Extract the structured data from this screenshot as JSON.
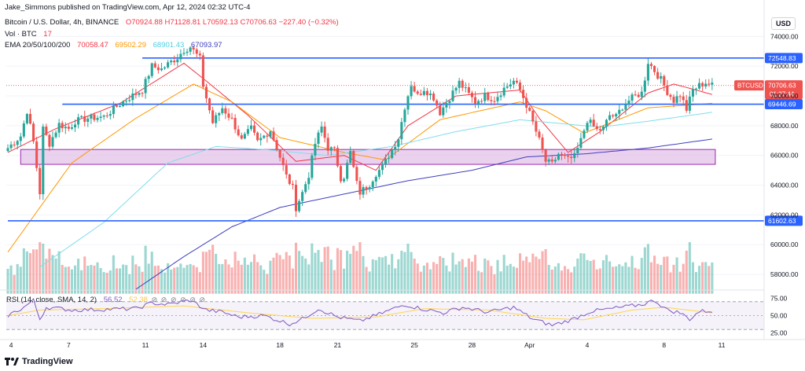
{
  "header": {
    "publisher": "Jake_Simmons published on TradingView.com, Apr 12, 2024 02:32 UTC-4",
    "symbol": "Bitcoin / U.S. Dollar, 4h, BINANCE",
    "open": "O70924.88",
    "high": "H71128.81",
    "low": "L70592.13",
    "close": "C70706.63",
    "change": "−227.40 (−0.32%)",
    "vol_label": "Vol · BTC",
    "vol_value": "17",
    "ema_label": "EMA 20/50/100/200",
    "ema20": "70058.47",
    "ema50": "69502.29",
    "ema100": "68901.43",
    "ema200": "67093.97",
    "currency": "USD"
  },
  "rsi_header": {
    "label": "RSI (14, close, SMA, 14, 2)",
    "value": "56.52",
    "sma": "52.38",
    "circles": [
      "⊘",
      "⊘",
      "⊘",
      "⊘",
      "⊘",
      "⊘"
    ]
  },
  "footer": {
    "brand": "TradingView"
  },
  "colors": {
    "up": "#26a69a",
    "down": "#ef5350",
    "ema20": "#f23645",
    "ema50": "#ff9800",
    "ema100": "#80deea",
    "ema200": "#3f3fbf",
    "level": "#2962ff",
    "zone_fill": "#e1bee7",
    "zone_border": "#9c27b0",
    "rsi_line": "#7e57c2",
    "rsi_sma": "#ffd54f"
  },
  "chart_data": {
    "type": "candlestick",
    "title": "Bitcoin / U.S. Dollar, 4h, BINANCE",
    "ylabel": "USD",
    "ylim": [
      57000,
      75500
    ],
    "y_ticks": [
      58000,
      60000,
      62000,
      64000,
      66000,
      68000,
      70000,
      72000,
      74000
    ],
    "y_tick_labels": [
      "58000.00",
      "60000.00",
      "62000.00",
      "64000.00",
      "66000.00",
      "68000.00",
      "70000.00",
      "72000.00",
      "74000.00"
    ],
    "x_ticks": [
      "4",
      "7",
      "11",
      "14",
      "18",
      "21",
      "25",
      "28",
      "Apr",
      "4",
      "8",
      "11"
    ],
    "x_tick_bar_index": [
      1,
      19,
      43,
      61,
      85,
      103,
      127,
      145,
      163,
      181,
      205,
      223
    ],
    "horizontal_levels": [
      {
        "value": 72548.83,
        "label": "72548.83",
        "start_bar": 42
      },
      {
        "value": 69446.69,
        "label": "69446.69",
        "start_bar": 17
      },
      {
        "value": 61602.63,
        "label": "61602.63",
        "start_bar": 0
      }
    ],
    "zone": {
      "low": 65400,
      "high": 66400,
      "start_bar": 4,
      "end_bar": 221
    },
    "price_tag": {
      "symbol": "BTCUSD",
      "value": "70706.63",
      "countdown": "01:27:44"
    },
    "anchors": [
      [
        0,
        66500
      ],
      [
        4,
        67300
      ],
      [
        6,
        69000
      ],
      [
        8,
        66900
      ],
      [
        10,
        63500
      ],
      [
        11,
        67800
      ],
      [
        13,
        66800
      ],
      [
        16,
        68100
      ],
      [
        19,
        67800
      ],
      [
        21,
        68300
      ],
      [
        25,
        68500
      ],
      [
        30,
        68600
      ],
      [
        34,
        69300
      ],
      [
        38,
        69900
      ],
      [
        42,
        70400
      ],
      [
        45,
        72000
      ],
      [
        48,
        71800
      ],
      [
        51,
        72300
      ],
      [
        53,
        72600
      ],
      [
        55,
        73100
      ],
      [
        57,
        73300
      ],
      [
        60,
        72500
      ],
      [
        61,
        70700
      ],
      [
        64,
        68200
      ],
      [
        67,
        69200
      ],
      [
        70,
        68400
      ],
      [
        73,
        67000
      ],
      [
        76,
        67800
      ],
      [
        78,
        66900
      ],
      [
        82,
        67700
      ],
      [
        85,
        65900
      ],
      [
        87,
        64600
      ],
      [
        89,
        63800
      ],
      [
        90,
        62500
      ],
      [
        92,
        63500
      ],
      [
        94,
        64700
      ],
      [
        96,
        66800
      ],
      [
        98,
        67900
      ],
      [
        100,
        66500
      ],
      [
        102,
        66300
      ],
      [
        104,
        64500
      ],
      [
        105,
        64600
      ],
      [
        107,
        66200
      ],
      [
        109,
        64100
      ],
      [
        110,
        63500
      ],
      [
        113,
        64100
      ],
      [
        115,
        64800
      ],
      [
        117,
        65200
      ],
      [
        120,
        66400
      ],
      [
        122,
        67200
      ],
      [
        124,
        69300
      ],
      [
        126,
        70800
      ],
      [
        128,
        70000
      ],
      [
        130,
        70500
      ],
      [
        133,
        69900
      ],
      [
        135,
        68900
      ],
      [
        138,
        69900
      ],
      [
        141,
        70900
      ],
      [
        144,
        70100
      ],
      [
        146,
        69600
      ],
      [
        149,
        70000
      ],
      [
        152,
        69800
      ],
      [
        155,
        70500
      ],
      [
        158,
        71000
      ],
      [
        160,
        70400
      ],
      [
        162,
        69400
      ],
      [
        164,
        68200
      ],
      [
        166,
        67000
      ],
      [
        168,
        65600
      ],
      [
        170,
        65400
      ],
      [
        172,
        66100
      ],
      [
        175,
        65700
      ],
      [
        177,
        65900
      ],
      [
        179,
        67000
      ],
      [
        181,
        68400
      ],
      [
        184,
        67700
      ],
      [
        186,
        67800
      ],
      [
        188,
        68700
      ],
      [
        190,
        68600
      ],
      [
        192,
        69300
      ],
      [
        194,
        69700
      ],
      [
        196,
        70000
      ],
      [
        198,
        70200
      ],
      [
        199,
        71200
      ],
      [
        200,
        72300
      ],
      [
        201,
        72000
      ],
      [
        202,
        71700
      ],
      [
        204,
        71100
      ],
      [
        206,
        70300
      ],
      [
        208,
        69700
      ],
      [
        210,
        70100
      ],
      [
        212,
        69100
      ],
      [
        214,
        70400
      ],
      [
        216,
        70700
      ],
      [
        218,
        70900
      ],
      [
        220,
        70700
      ]
    ],
    "ema_series": [
      {
        "name": "EMA 20",
        "color": "#f23645",
        "points": [
          [
            0,
            66200
          ],
          [
            15,
            67800
          ],
          [
            35,
            69500
          ],
          [
            55,
            72200
          ],
          [
            62,
            71000
          ],
          [
            75,
            68700
          ],
          [
            90,
            65600
          ],
          [
            105,
            66000
          ],
          [
            115,
            65000
          ],
          [
            125,
            68000
          ],
          [
            140,
            70000
          ],
          [
            160,
            70400
          ],
          [
            166,
            68500
          ],
          [
            175,
            66200
          ],
          [
            185,
            67600
          ],
          [
            200,
            70200
          ],
          [
            208,
            70800
          ],
          [
            220,
            70100
          ]
        ]
      },
      {
        "name": "EMA 50",
        "color": "#ff9800",
        "points": [
          [
            0,
            59500
          ],
          [
            20,
            65500
          ],
          [
            40,
            68500
          ],
          [
            58,
            70800
          ],
          [
            70,
            69600
          ],
          [
            85,
            67200
          ],
          [
            105,
            66200
          ],
          [
            118,
            65700
          ],
          [
            135,
            68400
          ],
          [
            160,
            69600
          ],
          [
            168,
            69000
          ],
          [
            180,
            67500
          ],
          [
            200,
            69200
          ],
          [
            220,
            69500
          ]
        ]
      },
      {
        "name": "EMA 100",
        "color": "#80deea",
        "points": [
          [
            10,
            58500
          ],
          [
            30,
            61500
          ],
          [
            50,
            65500
          ],
          [
            65,
            66600
          ],
          [
            80,
            66400
          ],
          [
            100,
            66000
          ],
          [
            120,
            66600
          ],
          [
            140,
            67600
          ],
          [
            160,
            68400
          ],
          [
            170,
            68200
          ],
          [
            185,
            67900
          ],
          [
            200,
            68300
          ],
          [
            220,
            68900
          ]
        ]
      },
      {
        "name": "EMA 200",
        "color": "#3f3fbf",
        "points": [
          [
            40,
            57000
          ],
          [
            55,
            59200
          ],
          [
            70,
            61200
          ],
          [
            85,
            62500
          ],
          [
            105,
            63400
          ],
          [
            125,
            64300
          ],
          [
            145,
            65000
          ],
          [
            162,
            65900
          ],
          [
            180,
            66100
          ],
          [
            200,
            66500
          ],
          [
            220,
            67100
          ]
        ]
      }
    ],
    "volume": {
      "baseline_price": 57500,
      "max_height_price": 2700
    },
    "rsi": {
      "ylim": [
        20,
        80
      ],
      "levels": [
        70,
        50,
        30
      ],
      "tick_labels": [
        "75.00",
        "50.00",
        "25.00"
      ],
      "tick_values": [
        75,
        50,
        25
      ],
      "anchors": [
        [
          0,
          50
        ],
        [
          5,
          62
        ],
        [
          8,
          72
        ],
        [
          10,
          45
        ],
        [
          12,
          62
        ],
        [
          20,
          58
        ],
        [
          40,
          60
        ],
        [
          45,
          68
        ],
        [
          50,
          66
        ],
        [
          57,
          72
        ],
        [
          62,
          58
        ],
        [
          67,
          55
        ],
        [
          72,
          48
        ],
        [
          80,
          50
        ],
        [
          88,
          38
        ],
        [
          92,
          45
        ],
        [
          97,
          60
        ],
        [
          103,
          48
        ],
        [
          110,
          42
        ],
        [
          116,
          52
        ],
        [
          124,
          66
        ],
        [
          129,
          60
        ],
        [
          136,
          54
        ],
        [
          142,
          62
        ],
        [
          150,
          55
        ],
        [
          158,
          62
        ],
        [
          164,
          45
        ],
        [
          170,
          36
        ],
        [
          176,
          44
        ],
        [
          182,
          56
        ],
        [
          192,
          62
        ],
        [
          198,
          66
        ],
        [
          202,
          72
        ],
        [
          206,
          58
        ],
        [
          210,
          54
        ],
        [
          213,
          45
        ],
        [
          216,
          56
        ],
        [
          220,
          57
        ]
      ],
      "sma_anchors": [
        [
          0,
          50
        ],
        [
          10,
          58
        ],
        [
          30,
          60
        ],
        [
          55,
          64
        ],
        [
          75,
          54
        ],
        [
          95,
          46
        ],
        [
          115,
          48
        ],
        [
          130,
          60
        ],
        [
          150,
          58
        ],
        [
          168,
          46
        ],
        [
          180,
          44
        ],
        [
          195,
          58
        ],
        [
          205,
          62
        ],
        [
          220,
          54
        ]
      ]
    }
  }
}
